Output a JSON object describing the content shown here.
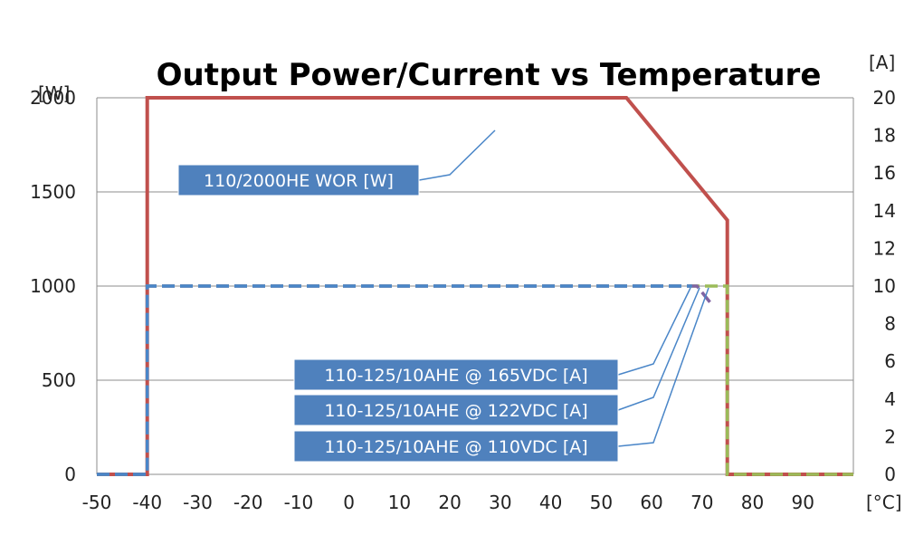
{
  "chart_data": {
    "type": "line",
    "title": "Output Power/Current  vs Temperature",
    "xunit": "[°C]",
    "yunit_left": "[W]",
    "yunit_right": "[A]",
    "xlim": [
      -50,
      100
    ],
    "ylim_left": [
      0,
      2000
    ],
    "ylim_right": [
      0,
      20
    ],
    "xticks": [
      -50,
      -40,
      -30,
      -20,
      -10,
      0,
      10,
      20,
      30,
      40,
      50,
      60,
      70,
      80,
      90
    ],
    "yticks_left": [
      0,
      500,
      1000,
      1500,
      2000
    ],
    "yticks_right": [
      0,
      2,
      4,
      6,
      8,
      10,
      12,
      14,
      16,
      18,
      20
    ],
    "grid": true,
    "series": [
      {
        "name": "110/2000HE WOR [W]",
        "axis": "left",
        "color": "#c0504d",
        "dash": "solid",
        "x": [
          -50,
          -40,
          -40,
          55,
          75,
          75,
          100
        ],
        "y": [
          0,
          0,
          2000,
          2000,
          1350,
          0,
          0
        ]
      },
      {
        "name": "110-125/10AHE @ 165VDC [A]",
        "axis": "right",
        "color": "#4a86c8",
        "dash": "dash",
        "x": [
          -50,
          -40,
          -40,
          68,
          68
        ],
        "y": [
          0,
          0,
          10,
          10,
          10
        ]
      },
      {
        "name": "110-125/10AHE @ 122VDC [A]",
        "axis": "right",
        "color": "#8064a2",
        "dash": "dash",
        "x": [
          -50,
          -40,
          -40,
          69,
          72
        ],
        "y": [
          0,
          0,
          10,
          10,
          9
        ]
      },
      {
        "name": "110-125/10AHE @ 110VDC [A]",
        "axis": "right",
        "color": "#9bbb59",
        "dash": "dash",
        "x": [
          -50,
          -40,
          -40,
          75,
          75,
          100
        ],
        "y": [
          0,
          0,
          10,
          10,
          0,
          0
        ]
      }
    ]
  }
}
